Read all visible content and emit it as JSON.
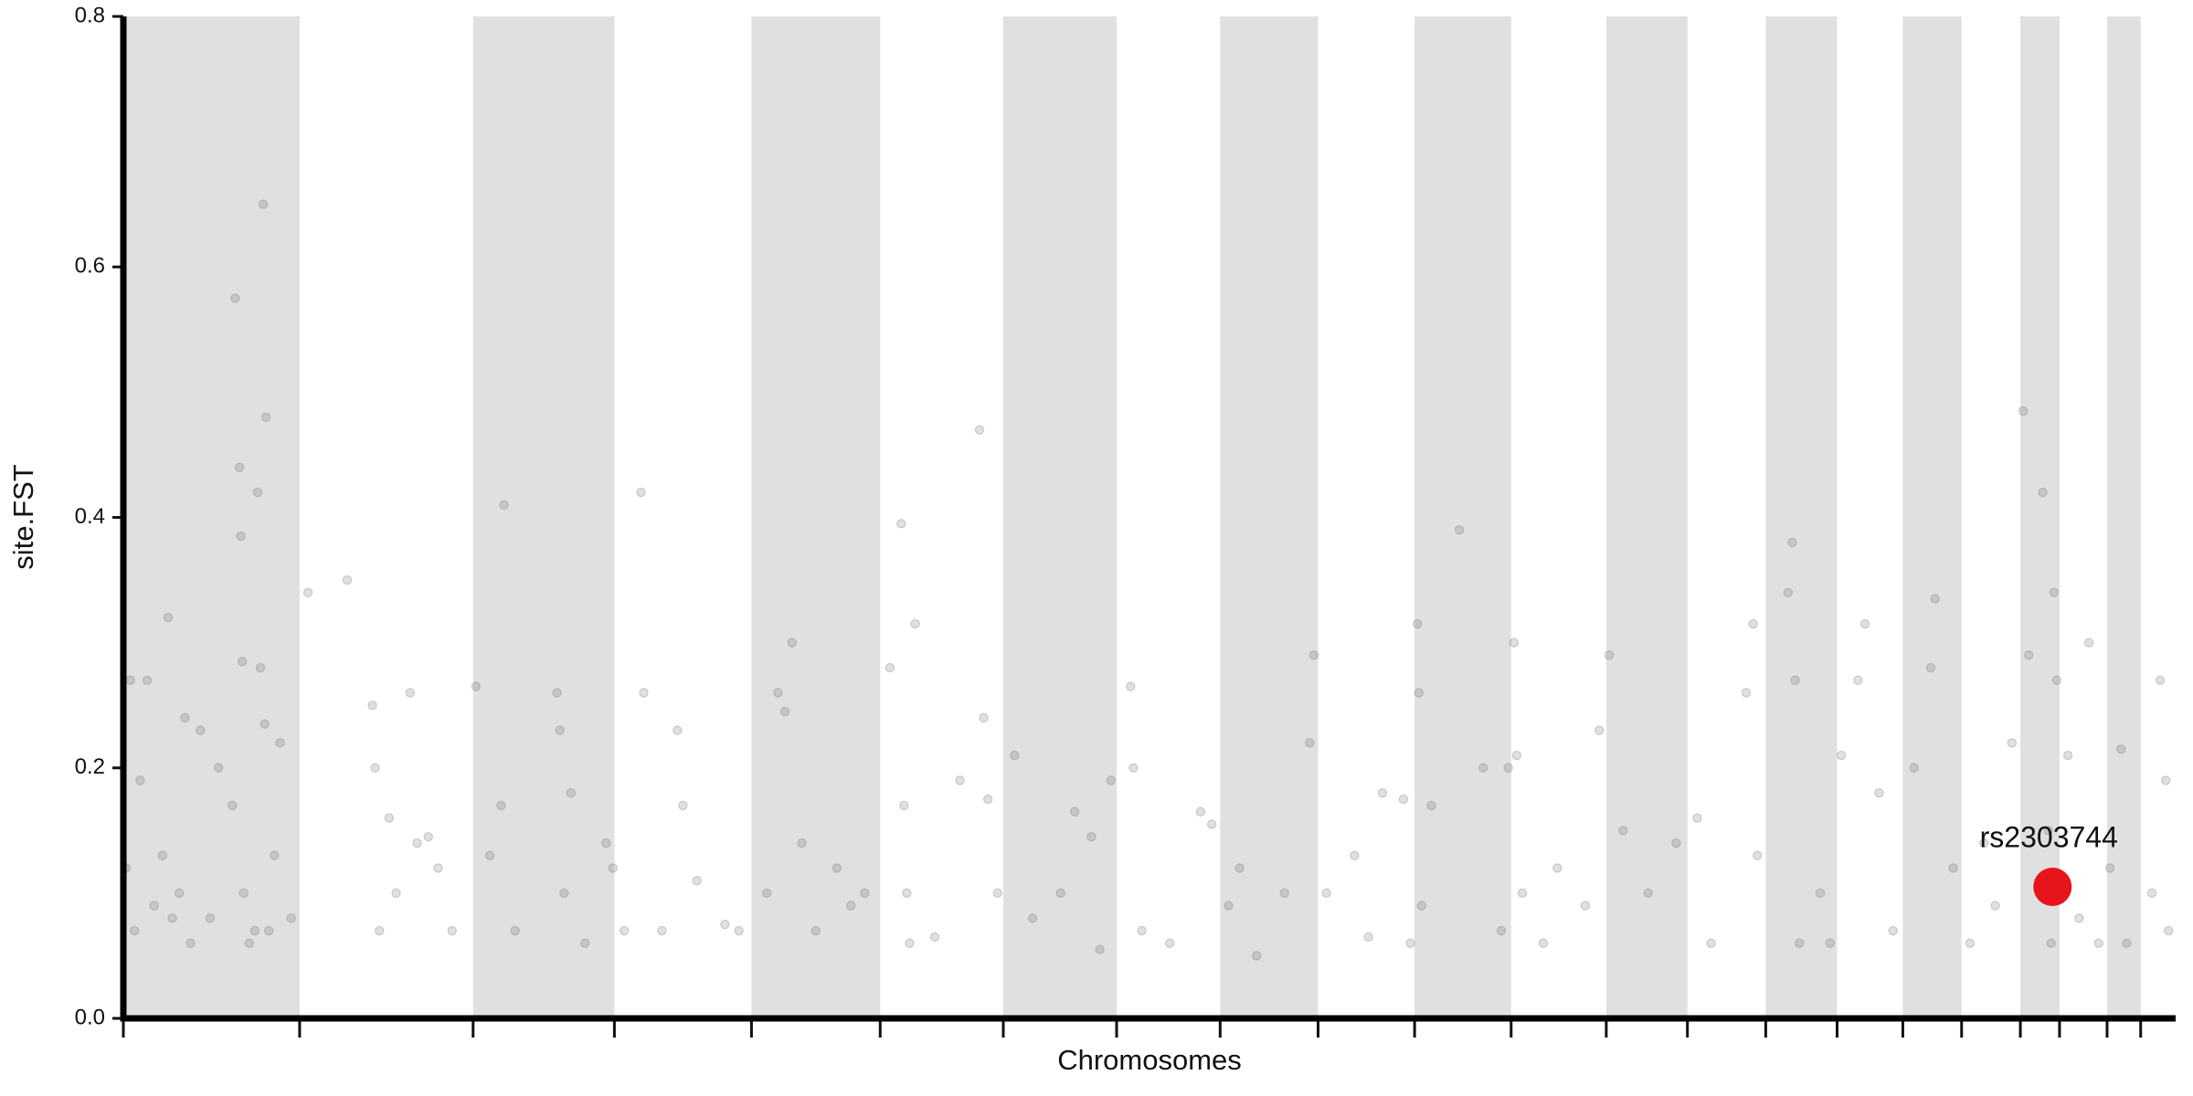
{
  "chart_data": {
    "type": "scatter",
    "xlabel": "Chromosomes",
    "ylabel": "site.FST",
    "xlim": [
      0,
      1467
    ],
    "xticks": [
      0,
      126,
      250,
      351,
      449,
      541,
      629,
      710,
      784,
      854,
      923,
      992,
      1060,
      1118,
      1174,
      1225,
      1272,
      1314,
      1356,
      1384,
      1418,
      1442
    ],
    "ylim": [
      0,
      0.8
    ],
    "yticks": [
      {
        "value": 0,
        "label": "0.0"
      },
      0.2,
      0.4,
      0.6,
      0.8
    ],
    "band_color": "#e0e0e0",
    "color": "#555555",
    "x": [
      2,
      5,
      8,
      12,
      17,
      22,
      28,
      32,
      35,
      40,
      44,
      48,
      55,
      62,
      68,
      78,
      80,
      83,
      84,
      85,
      86,
      90,
      94,
      96,
      98,
      100,
      101,
      102,
      104,
      108,
      112,
      120,
      132,
      160,
      178,
      180,
      183,
      190,
      195,
      205,
      210,
      218,
      225,
      235,
      252,
      262,
      270,
      272,
      280,
      310,
      312,
      315,
      320,
      330,
      345,
      350,
      358,
      370,
      372,
      385,
      396,
      400,
      410,
      430,
      440,
      460,
      468,
      473,
      478,
      485,
      495,
      510,
      520,
      530,
      548,
      556,
      558,
      560,
      562,
      566,
      580,
      598,
      612,
      615,
      618,
      625,
      637,
      650,
      670,
      680,
      692,
      698,
      706,
      720,
      722,
      728,
      748,
      770,
      778,
      790,
      798,
      810,
      830,
      848,
      851,
      860,
      880,
      890,
      900,
      915,
      920,
      925,
      926,
      928,
      935,
      955,
      972,
      985,
      990,
      994,
      996,
      1000,
      1015,
      1025,
      1045,
      1055,
      1062,
      1072,
      1090,
      1110,
      1125,
      1135,
      1160,
      1165,
      1168,
      1190,
      1193,
      1195,
      1198,
      1213,
      1220,
      1228,
      1240,
      1245,
      1255,
      1265,
      1280,
      1292,
      1295,
      1308,
      1320,
      1330,
      1338,
      1350,
      1358,
      1362,
      1372,
      1380,
      1382,
      1378,
      1376,
      1390,
      1398,
      1405,
      1412,
      1420,
      1428,
      1432,
      1450,
      1456,
      1460,
      1462
    ],
    "values": [
      0.12,
      0.27,
      0.07,
      0.19,
      0.27,
      0.09,
      0.13,
      0.32,
      0.08,
      0.1,
      0.24,
      0.06,
      0.23,
      0.08,
      0.2,
      0.17,
      0.575,
      0.44,
      0.385,
      0.285,
      0.1,
      0.06,
      0.07,
      0.42,
      0.28,
      0.65,
      0.235,
      0.48,
      0.07,
      0.13,
      0.22,
      0.08,
      0.34,
      0.35,
      0.25,
      0.2,
      0.07,
      0.16,
      0.1,
      0.26,
      0.14,
      0.145,
      0.12,
      0.07,
      0.265,
      0.13,
      0.17,
      0.41,
      0.07,
      0.26,
      0.23,
      0.1,
      0.18,
      0.06,
      0.14,
      0.12,
      0.07,
      0.42,
      0.26,
      0.07,
      0.23,
      0.17,
      0.11,
      0.075,
      0.07,
      0.1,
      0.26,
      0.245,
      0.3,
      0.14,
      0.07,
      0.12,
      0.09,
      0.1,
      0.28,
      0.395,
      0.17,
      0.1,
      0.06,
      0.315,
      0.065,
      0.19,
      0.47,
      0.24,
      0.175,
      0.1,
      0.21,
      0.08,
      0.1,
      0.165,
      0.145,
      0.055,
      0.19,
      0.265,
      0.2,
      0.07,
      0.06,
      0.165,
      0.155,
      0.09,
      0.12,
      0.05,
      0.1,
      0.22,
      0.29,
      0.1,
      0.13,
      0.065,
      0.18,
      0.175,
      0.06,
      0.315,
      0.26,
      0.09,
      0.17,
      0.39,
      0.2,
      0.07,
      0.2,
      0.3,
      0.21,
      0.1,
      0.06,
      0.12,
      0.09,
      0.23,
      0.29,
      0.15,
      0.1,
      0.14,
      0.16,
      0.06,
      0.26,
      0.315,
      0.13,
      0.34,
      0.38,
      0.27,
      0.06,
      0.1,
      0.06,
      0.21,
      0.27,
      0.315,
      0.18,
      0.07,
      0.2,
      0.28,
      0.335,
      0.12,
      0.06,
      0.14,
      0.09,
      0.22,
      0.485,
      0.29,
      0.42,
      0.34,
      0.27,
      0.06,
      0.15,
      0.21,
      0.08,
      0.3,
      0.06,
      0.12,
      0.215,
      0.06,
      0.1,
      0.27,
      0.19,
      0.07
    ],
    "annotations": [
      {
        "label": "rs2303744",
        "x": 1379,
        "y": 0.105,
        "color": "#e8141b"
      }
    ]
  }
}
